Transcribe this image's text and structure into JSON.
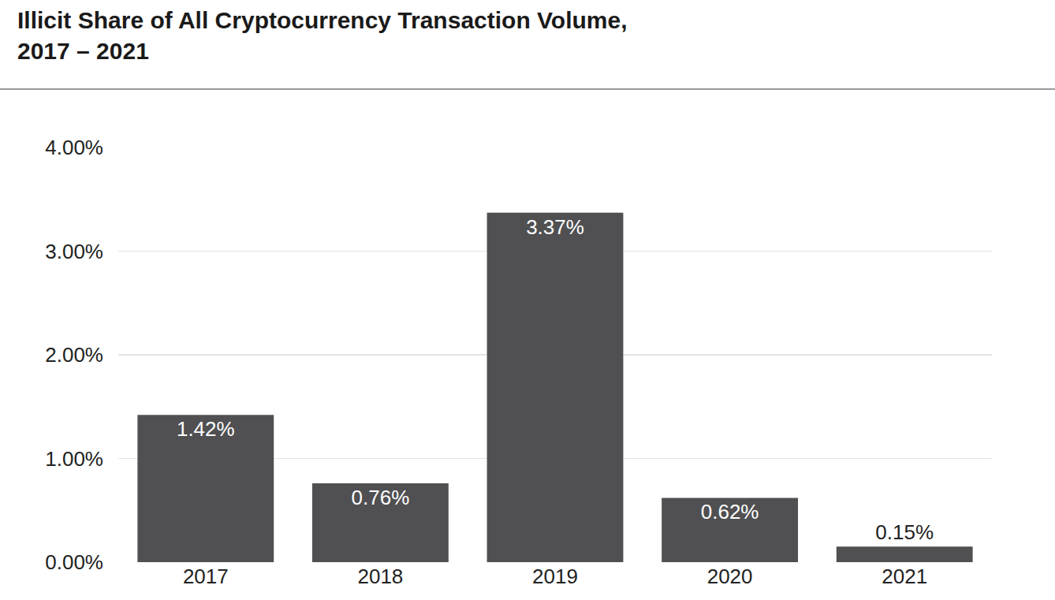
{
  "chart_data": {
    "type": "bar",
    "title": "Illicit Share of All Cryptocurrency Transaction Volume, 2017 – 2021",
    "categories": [
      "2017",
      "2018",
      "2019",
      "2020",
      "2021"
    ],
    "values": [
      1.42,
      0.76,
      3.37,
      0.62,
      0.15
    ],
    "value_labels": [
      "1.42%",
      "0.76%",
      "3.37%",
      "0.62%",
      "0.15%"
    ],
    "color": "#505052",
    "ylim": [
      0,
      4
    ],
    "yticks": [
      {
        "value": 0,
        "label": "0.00%"
      },
      {
        "value": 1,
        "label": "1.00%"
      },
      {
        "value": 2,
        "label": "2.00%"
      },
      {
        "value": 3,
        "label": "3.00%"
      },
      {
        "value": 4,
        "label": "4.00%"
      }
    ],
    "grid": true,
    "data_labels": true
  }
}
